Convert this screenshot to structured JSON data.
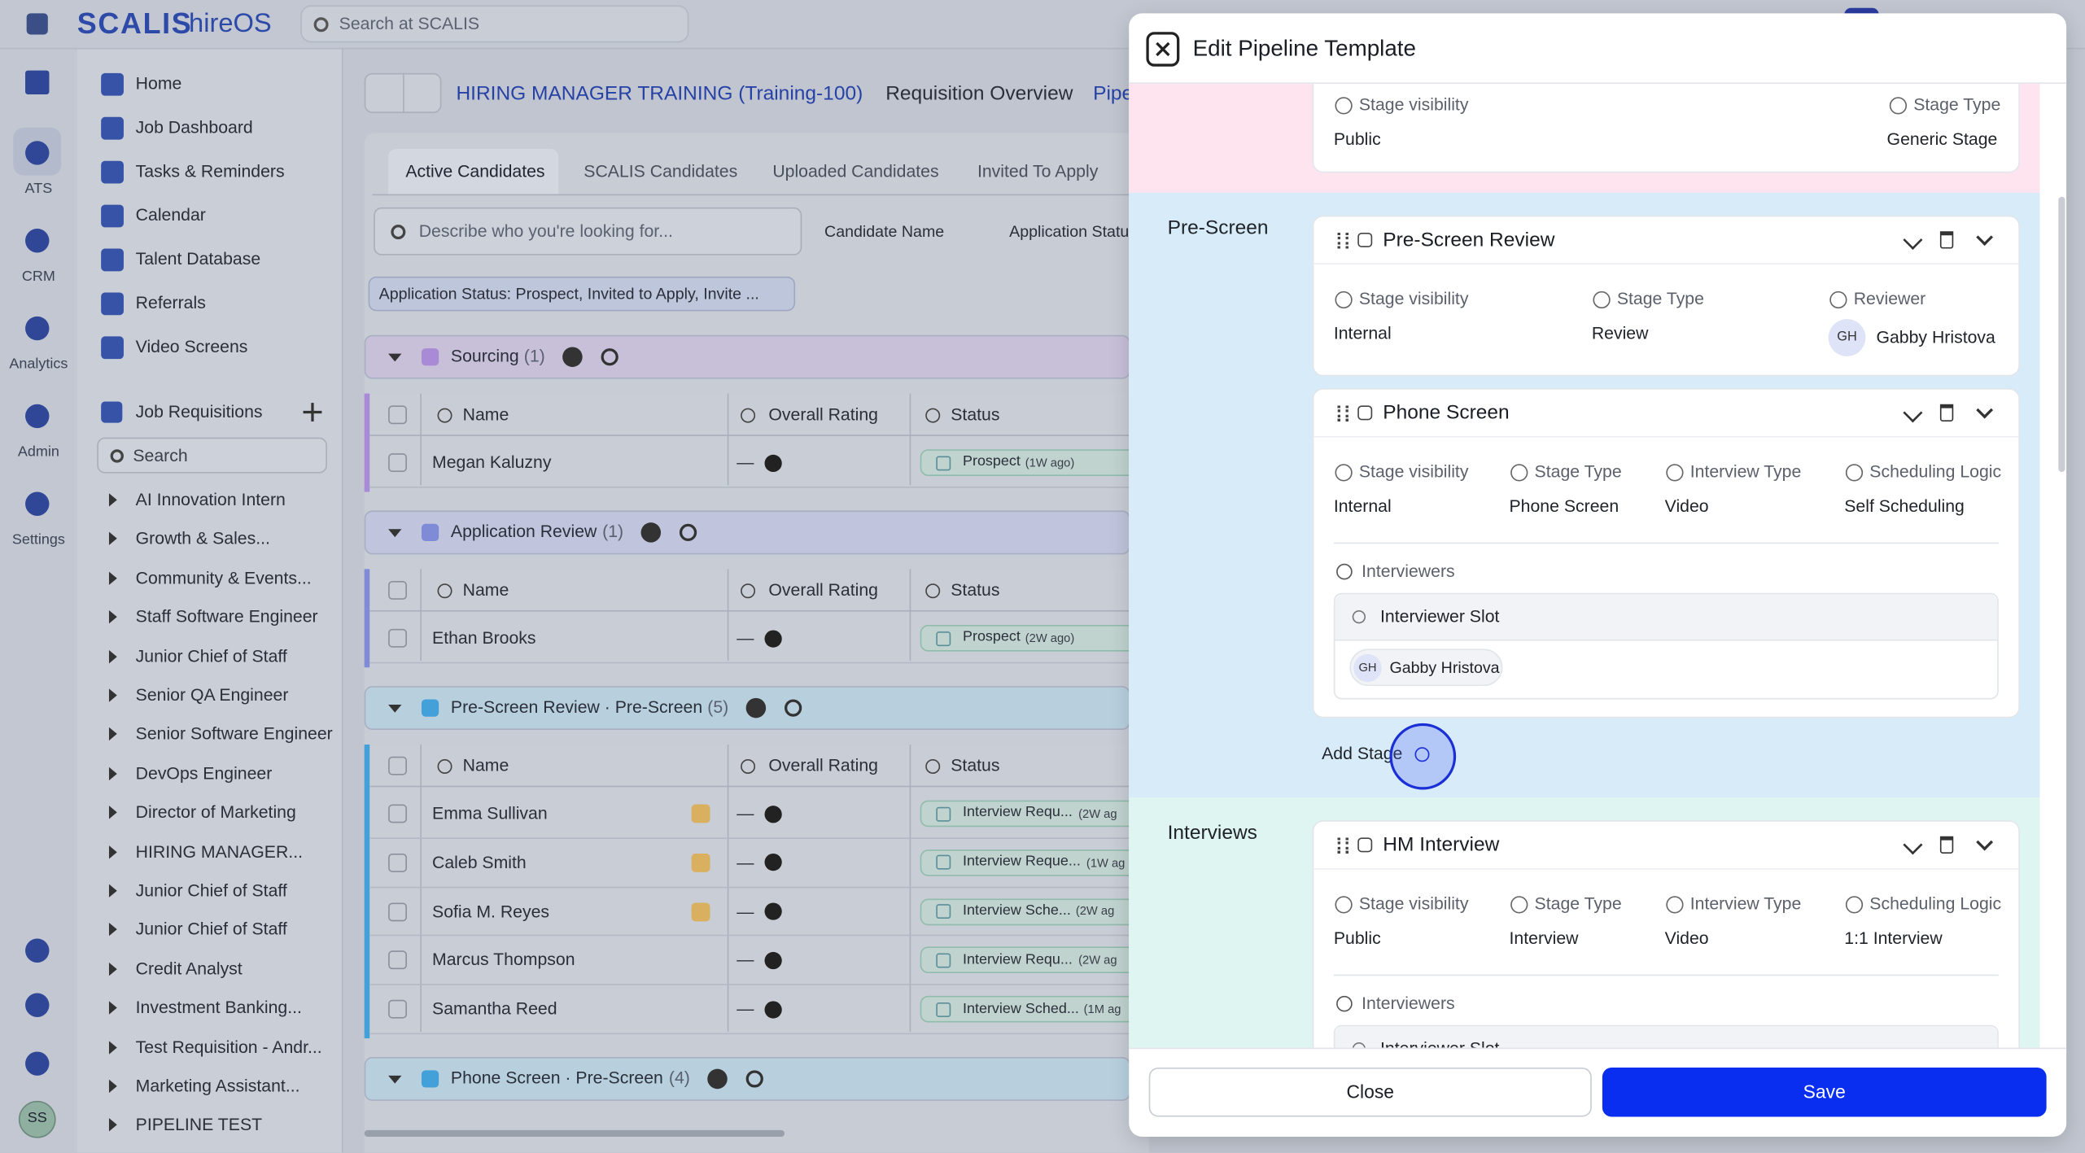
{
  "header": {
    "logo": "SCALIS",
    "product": "hireOS",
    "search": "Search at SCALIS"
  },
  "rail": {
    "items": [
      "ATS",
      "CRM",
      "Analytics",
      "Admin",
      "Settings"
    ],
    "avatar": "SS"
  },
  "sidebar": {
    "nav": [
      "Home",
      "Job Dashboard",
      "Tasks & Reminders",
      "Calendar",
      "Talent Database",
      "Referrals",
      "Video Screens"
    ],
    "section": "Job Requisitions",
    "search": "Search",
    "requisitions": [
      "AI Innovation Intern",
      "Growth & Sales...",
      "Community & Events...",
      "Staff Software Engineer",
      "Junior Chief of Staff",
      "Senior QA Engineer",
      "Senior Software Engineer",
      "DevOps Engineer",
      "Director of Marketing",
      "HIRING MANAGER...",
      "Junior Chief of Staff",
      "Junior Chief of Staff",
      "Credit Analyst",
      "Investment Banking...",
      "Test Requisition - Andr...",
      "Marketing Assistant...",
      "PIPELINE TEST"
    ]
  },
  "main": {
    "breadcrumb": [
      "HIRING MANAGER TRAINING (Training-100)",
      "Requisition Overview",
      "Pipe"
    ],
    "tabs": [
      "Active Candidates",
      "SCALIS Candidates",
      "Uploaded Candidates",
      "Invited To Apply"
    ],
    "search": "Describe who you're looking for...",
    "filters": [
      "Candidate Name",
      "Application Status"
    ],
    "chip": "Application Status: Prospect, Invited to Apply, Invite ...",
    "columns": [
      "Name",
      "Overall Rating",
      "Status"
    ],
    "groups": [
      {
        "title": "Sourcing",
        "count": "(1)",
        "rows": [
          {
            "name": "Megan Kaluzny",
            "rating": "—",
            "status": "Prospect",
            "time": "(1W ago)"
          }
        ]
      },
      {
        "title": "Application Review",
        "count": "(1)",
        "rows": [
          {
            "name": "Ethan Brooks",
            "rating": "—",
            "status": "Prospect",
            "time": "(2W ago)"
          }
        ]
      },
      {
        "title": "Pre-Screen Review · Pre-Screen",
        "count": "(5)",
        "rows": [
          {
            "name": "Emma Sullivan",
            "rating": "—",
            "status": "Interview Requ...",
            "time": "(2W ag"
          },
          {
            "name": "Caleb Smith",
            "rating": "—",
            "status": "Interview Reque...",
            "time": "(1W ag"
          },
          {
            "name": "Sofia M. Reyes",
            "rating": "—",
            "status": "Interview Sche...",
            "time": "(2W ag"
          },
          {
            "name": "Marcus Thompson",
            "rating": "—",
            "status": "Interview Requ...",
            "time": "(2W ag"
          },
          {
            "name": "Samantha Reed",
            "rating": "—",
            "status": "Interview Sched...",
            "time": "(1M ag"
          }
        ]
      },
      {
        "title": "Phone Screen · Pre-Screen",
        "count": "(4)",
        "rows": []
      }
    ]
  },
  "modal": {
    "title": "Edit Pipeline Template",
    "top_card": {
      "fields": [
        {
          "label": "Stage visibility",
          "value": "Public"
        },
        {
          "label": "Stage Type",
          "value": "Generic Stage"
        }
      ]
    },
    "sections": [
      {
        "name": "Pre-Screen",
        "add": "Add Stage",
        "stages": [
          {
            "title": "Pre-Screen Review",
            "fields": [
              {
                "label": "Stage visibility",
                "value": "Internal"
              },
              {
                "label": "Stage Type",
                "value": "Review"
              },
              {
                "label": "Reviewer",
                "value": "Gabby Hristova",
                "initials": "GH"
              }
            ]
          },
          {
            "title": "Phone Screen",
            "fields": [
              {
                "label": "Stage visibility",
                "value": "Internal"
              },
              {
                "label": "Stage Type",
                "value": "Phone Screen"
              },
              {
                "label": "Interview Type",
                "value": "Video"
              },
              {
                "label": "Scheduling Logic",
                "value": "Self Scheduling"
              }
            ],
            "interviewers": {
              "label": "Interviewers",
              "slot": "Interviewer Slot",
              "person": {
                "initials": "GH",
                "name": "Gabby Hristova"
              }
            }
          }
        ]
      },
      {
        "name": "Interviews",
        "stages": [
          {
            "title": "HM Interview",
            "fields": [
              {
                "label": "Stage visibility",
                "value": "Public"
              },
              {
                "label": "Stage Type",
                "value": "Interview"
              },
              {
                "label": "Interview Type",
                "value": "Video"
              },
              {
                "label": "Scheduling Logic",
                "value": "1:1 Interview"
              }
            ],
            "interviewers": {
              "label": "Interviewers",
              "slot": "Interviewer Slot"
            }
          }
        ]
      }
    ],
    "close": "Close",
    "save": "Save"
  }
}
